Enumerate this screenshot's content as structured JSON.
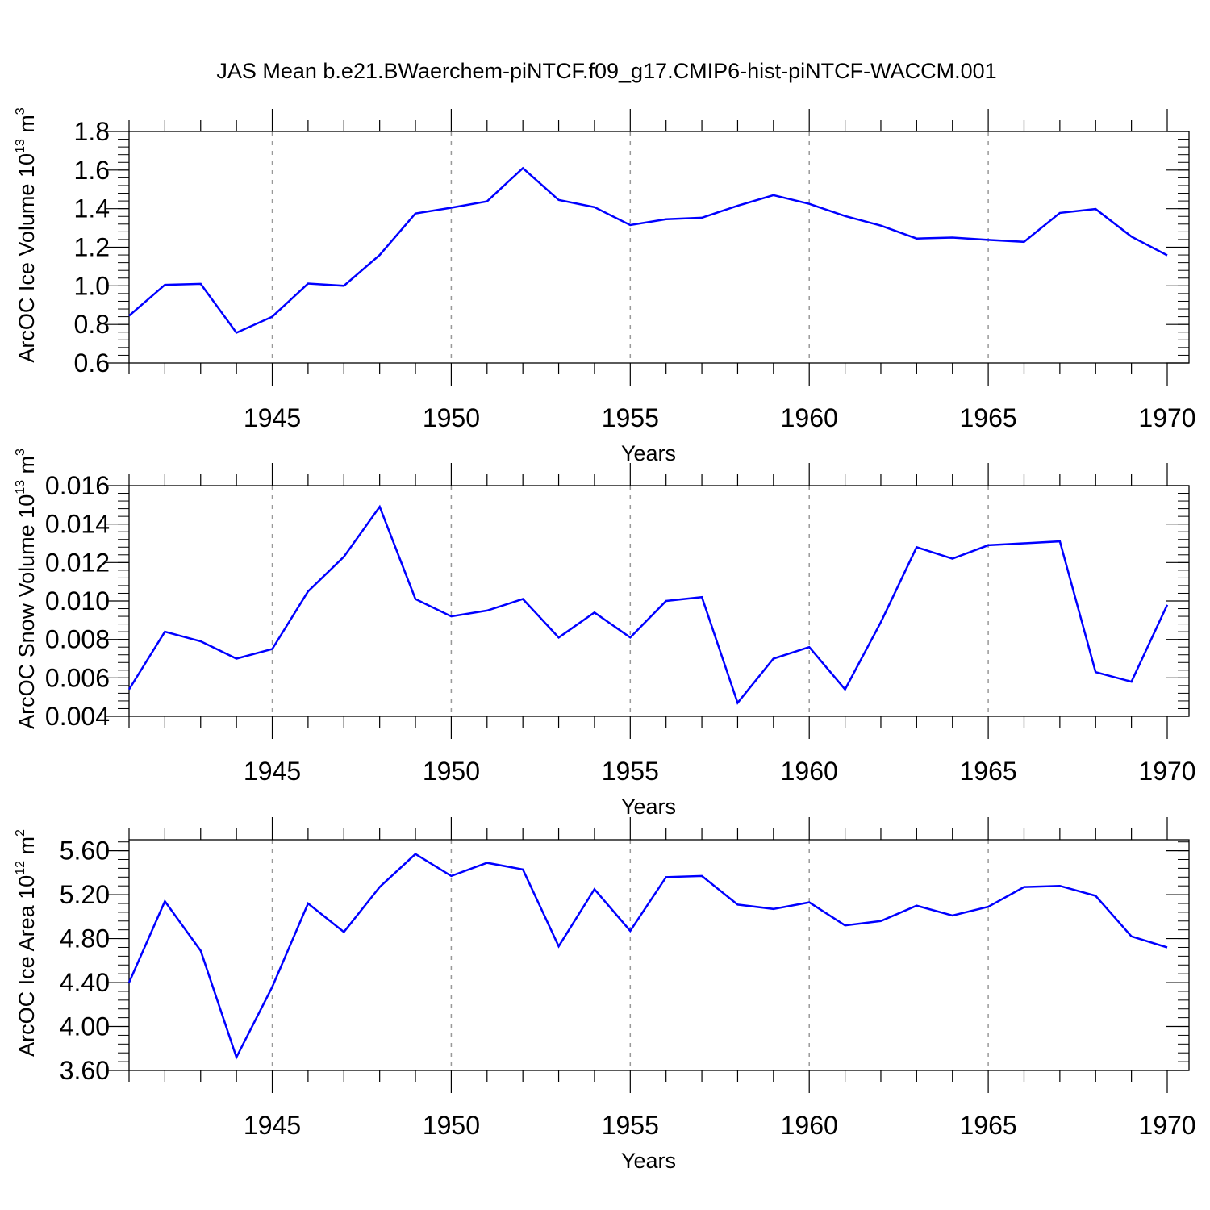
{
  "figure": {
    "title": "JAS Mean b.e21.BWaerchem-piNTCF.f09_g17.CMIP6-hist-piNTCF-WACCM.001",
    "line_color": "#0000ff",
    "grid_color": "#999999"
  },
  "chart_data": [
    {
      "type": "line",
      "name": "ice-volume",
      "xlabel": "Years",
      "ylabel_main": "ArcOC Ice Volume 10",
      "ylabel_exp": "13",
      "ylabel_unit": " m",
      "ylabel_unit_exp": "3",
      "xlim": [
        1941,
        1970
      ],
      "ylim": [
        0.6,
        1.8
      ],
      "ymajor_step": 0.2,
      "yminor_step": 0.04,
      "ydecimals": 1,
      "xticks": [
        1945,
        1950,
        1955,
        1960,
        1965,
        1970
      ],
      "xgrid": [
        1945,
        1950,
        1955,
        1960,
        1965
      ],
      "x": [
        1941,
        1942,
        1943,
        1944,
        1945,
        1946,
        1947,
        1948,
        1949,
        1950,
        1951,
        1952,
        1953,
        1954,
        1955,
        1956,
        1957,
        1958,
        1959,
        1960,
        1961,
        1962,
        1963,
        1964,
        1965,
        1966,
        1967,
        1968,
        1969,
        1970
      ],
      "y": [
        0.845,
        1.005,
        1.01,
        0.757,
        0.84,
        1.012,
        1.0,
        1.16,
        1.375,
        1.405,
        1.438,
        1.61,
        1.445,
        1.408,
        1.315,
        1.345,
        1.353,
        1.415,
        1.47,
        1.425,
        1.362,
        1.312,
        1.245,
        1.25,
        1.238,
        1.228,
        1.378,
        1.398,
        1.255,
        1.158
      ]
    },
    {
      "type": "line",
      "name": "snow-volume",
      "xlabel": "Years",
      "ylabel_main": "ArcOC Snow Volume 10",
      "ylabel_exp": "13",
      "ylabel_unit": " m",
      "ylabel_unit_exp": "3",
      "xlim": [
        1941,
        1970
      ],
      "ylim": [
        0.004,
        0.016
      ],
      "ymajor_step": 0.002,
      "yminor_step": 0.0004,
      "ydecimals": 3,
      "xticks": [
        1945,
        1950,
        1955,
        1960,
        1965,
        1970
      ],
      "xgrid": [
        1945,
        1950,
        1955,
        1960,
        1965
      ],
      "x": [
        1941,
        1942,
        1943,
        1944,
        1945,
        1946,
        1947,
        1948,
        1949,
        1950,
        1951,
        1952,
        1953,
        1954,
        1955,
        1956,
        1957,
        1958,
        1959,
        1960,
        1961,
        1962,
        1963,
        1964,
        1965,
        1966,
        1967,
        1968,
        1969,
        1970
      ],
      "y": [
        0.0054,
        0.0084,
        0.0079,
        0.007,
        0.0075,
        0.0105,
        0.0123,
        0.0149,
        0.0101,
        0.0092,
        0.0095,
        0.0101,
        0.0081,
        0.0094,
        0.0081,
        0.01,
        0.0102,
        0.0047,
        0.007,
        0.0076,
        0.0054,
        0.0089,
        0.0128,
        0.0122,
        0.0129,
        0.013,
        0.0131,
        0.0063,
        0.0058,
        0.0098
      ]
    },
    {
      "type": "line",
      "name": "ice-area",
      "xlabel": "Years",
      "ylabel_main": "ArcOC Ice Area 10",
      "ylabel_exp": "12",
      "ylabel_unit": " m",
      "ylabel_unit_exp": "2",
      "xlim": [
        1941,
        1970
      ],
      "ylim": [
        3.6,
        5.7
      ],
      "yticks": [
        3.6,
        4.0,
        4.4,
        4.8,
        5.2,
        5.6
      ],
      "yminor_step": 0.08,
      "ydecimals": 2,
      "xticks": [
        1945,
        1950,
        1955,
        1960,
        1965,
        1970
      ],
      "xgrid": [
        1945,
        1950,
        1955,
        1960,
        1965
      ],
      "x": [
        1941,
        1942,
        1943,
        1944,
        1945,
        1946,
        1947,
        1948,
        1949,
        1950,
        1951,
        1952,
        1953,
        1954,
        1955,
        1956,
        1957,
        1958,
        1959,
        1960,
        1961,
        1962,
        1963,
        1964,
        1965,
        1966,
        1967,
        1968,
        1969,
        1970
      ],
      "y": [
        4.4,
        5.14,
        4.69,
        3.72,
        4.36,
        5.12,
        4.86,
        5.27,
        5.57,
        5.37,
        5.49,
        5.43,
        4.73,
        5.25,
        4.87,
        5.36,
        5.37,
        5.11,
        5.07,
        5.13,
        4.92,
        4.96,
        5.1,
        5.01,
        5.09,
        5.27,
        5.28,
        5.19,
        4.82,
        4.72
      ]
    }
  ]
}
